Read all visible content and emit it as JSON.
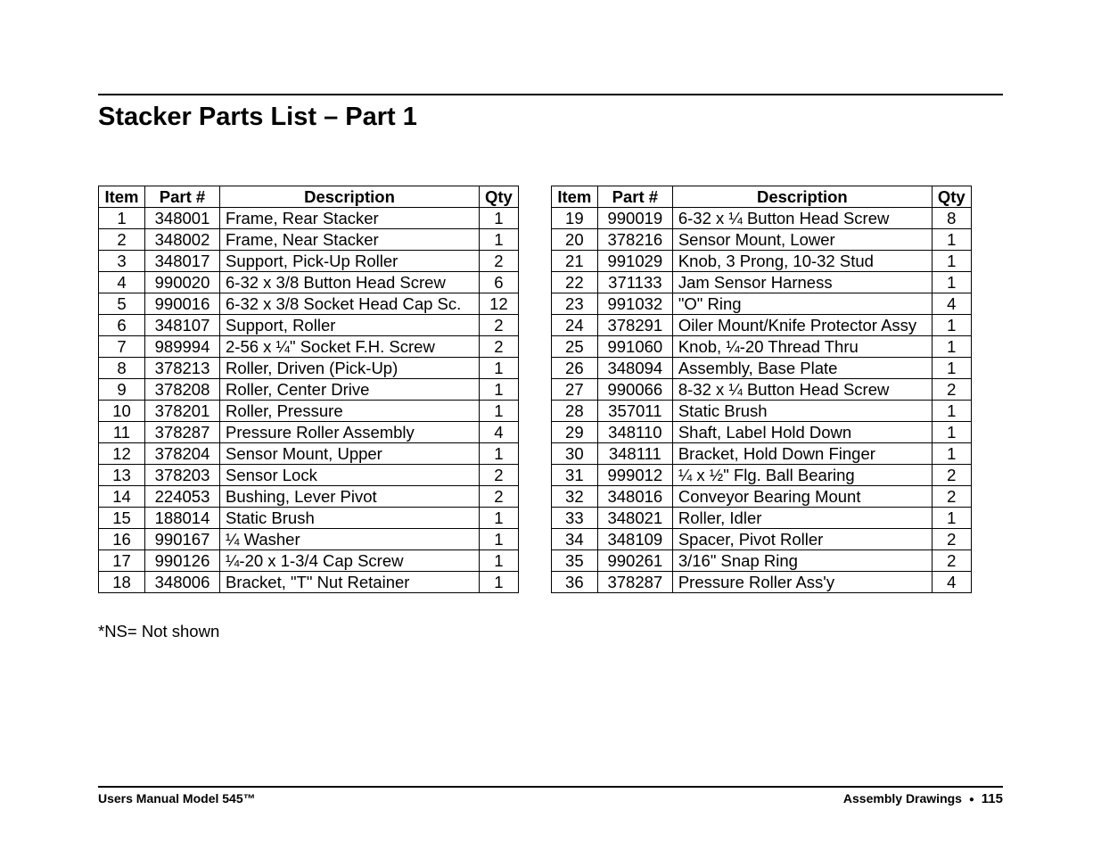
{
  "title": "Stacker Parts List – Part 1",
  "columns": [
    "Item",
    "Part #",
    "Description",
    "Qty"
  ],
  "left_rows": [
    {
      "item": "1",
      "part": "348001",
      "desc": "Frame, Rear Stacker",
      "qty": "1"
    },
    {
      "item": "2",
      "part": "348002",
      "desc": "Frame, Near Stacker",
      "qty": "1"
    },
    {
      "item": "3",
      "part": "348017",
      "desc": "Support, Pick-Up Roller",
      "qty": "2"
    },
    {
      "item": "4",
      "part": "990020",
      "desc": "6-32 x 3/8 Button Head Screw",
      "qty": "6"
    },
    {
      "item": "5",
      "part": "990016",
      "desc": "6-32 x 3/8 Socket Head Cap Sc.",
      "qty": "12"
    },
    {
      "item": "6",
      "part": "348107",
      "desc": "Support, Roller",
      "qty": "2"
    },
    {
      "item": "7",
      "part": "989994",
      "desc": "2-56 x ¼\" Socket F.H. Screw",
      "qty": "2"
    },
    {
      "item": "8",
      "part": "378213",
      "desc": "Roller, Driven (Pick-Up)",
      "qty": "1"
    },
    {
      "item": "9",
      "part": "378208",
      "desc": "Roller, Center Drive",
      "qty": "1"
    },
    {
      "item": "10",
      "part": "378201",
      "desc": "Roller, Pressure",
      "qty": "1"
    },
    {
      "item": "11",
      "part": "378287",
      "desc": "Pressure Roller Assembly",
      "qty": "4"
    },
    {
      "item": "12",
      "part": "378204",
      "desc": "Sensor Mount, Upper",
      "qty": "1"
    },
    {
      "item": "13",
      "part": "378203",
      "desc": "Sensor Lock",
      "qty": "2"
    },
    {
      "item": "14",
      "part": "224053",
      "desc": "Bushing, Lever Pivot",
      "qty": "2"
    },
    {
      "item": "15",
      "part": "188014",
      "desc": "Static Brush",
      "qty": "1"
    },
    {
      "item": "16",
      "part": "990167",
      "desc": "¼ Washer",
      "qty": "1"
    },
    {
      "item": "17",
      "part": "990126",
      "desc": "¼-20 x 1-3/4 Cap Screw",
      "qty": "1"
    },
    {
      "item": "18",
      "part": "348006",
      "desc": "Bracket, \"T\" Nut Retainer",
      "qty": "1"
    }
  ],
  "right_rows": [
    {
      "item": "19",
      "part": "990019",
      "desc": "6-32 x ¼ Button Head Screw",
      "qty": "8"
    },
    {
      "item": "20",
      "part": "378216",
      "desc": "Sensor Mount, Lower",
      "qty": "1"
    },
    {
      "item": "21",
      "part": "991029",
      "desc": "Knob, 3 Prong, 10-32 Stud",
      "qty": "1"
    },
    {
      "item": "22",
      "part": "371133",
      "desc": "Jam Sensor Harness",
      "qty": "1"
    },
    {
      "item": "23",
      "part": "991032",
      "desc": "\"O\" Ring",
      "qty": "4"
    },
    {
      "item": "24",
      "part": "378291",
      "desc": "Oiler Mount/Knife Protector Assy",
      "qty": "1"
    },
    {
      "item": "25",
      "part": "991060",
      "desc": "Knob, ¼-20 Thread Thru",
      "qty": "1"
    },
    {
      "item": "26",
      "part": "348094",
      "desc": "Assembly, Base Plate",
      "qty": "1"
    },
    {
      "item": "27",
      "part": "990066",
      "desc": "8-32 x ¼ Button Head Screw",
      "qty": "2"
    },
    {
      "item": "28",
      "part": "357011",
      "desc": "Static Brush",
      "qty": "1"
    },
    {
      "item": "29",
      "part": "348110",
      "desc": "Shaft, Label Hold Down",
      "qty": "1"
    },
    {
      "item": "30",
      "part": "348111",
      "desc": "Bracket, Hold Down Finger",
      "qty": "1"
    },
    {
      "item": "31",
      "part": "999012",
      "desc": "¼ x ½\" Flg. Ball Bearing",
      "qty": "2"
    },
    {
      "item": "32",
      "part": "348016",
      "desc": "Conveyor Bearing Mount",
      "qty": "2"
    },
    {
      "item": "33",
      "part": "348021",
      "desc": "Roller, Idler",
      "qty": "1"
    },
    {
      "item": "34",
      "part": "348109",
      "desc": "Spacer, Pivot Roller",
      "qty": "2"
    },
    {
      "item": "35",
      "part": "990261",
      "desc": "3/16\" Snap Ring",
      "qty": "2"
    },
    {
      "item": "36",
      "part": "378287",
      "desc": "Pressure Roller Ass'y",
      "qty": "4"
    }
  ],
  "footnote": "*NS= Not shown",
  "footer": {
    "left": "Users Manual Model 545™",
    "right_section": "Assembly Drawings",
    "right_page": "115"
  }
}
